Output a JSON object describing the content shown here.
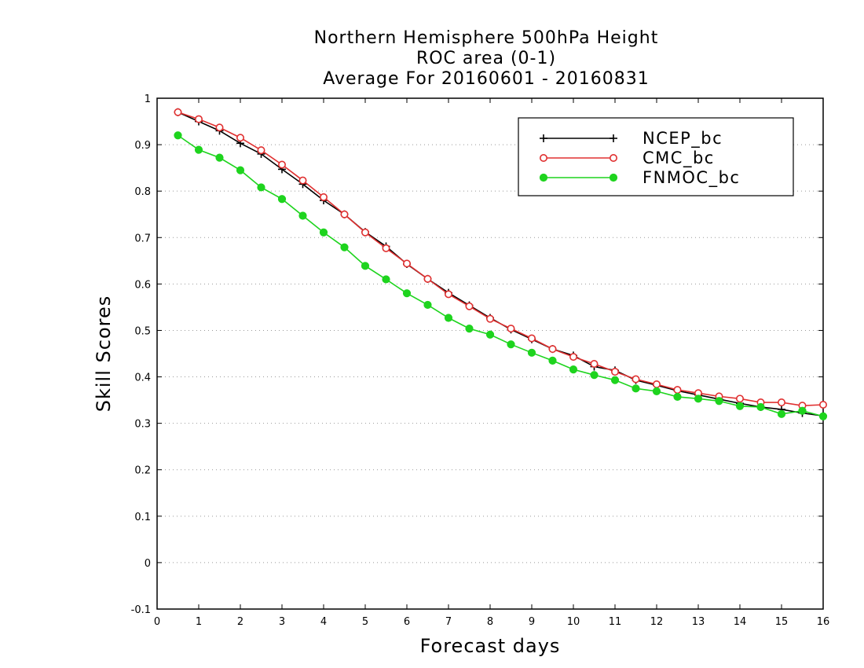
{
  "chart_data": {
    "type": "line",
    "title_lines": [
      "Northern Hemisphere 500hPa Height",
      "ROC area (0-1)",
      "Average For 20160601 - 20160831"
    ],
    "xlabel": "Forecast days",
    "ylabel": "Skill Scores",
    "xlim": [
      0,
      16
    ],
    "ylim": [
      -0.1,
      1
    ],
    "xticks": [
      0,
      1,
      2,
      3,
      4,
      5,
      6,
      7,
      8,
      9,
      10,
      11,
      12,
      13,
      14,
      15,
      16
    ],
    "yticks": [
      -0.1,
      0,
      0.1,
      0.2,
      0.3,
      0.4,
      0.5,
      0.6,
      0.7,
      0.8,
      0.9,
      1
    ],
    "ytick_labels": [
      "-0.1",
      "0",
      "0.1",
      "0.2",
      "0.3",
      "0.4",
      "0.5",
      "0.6",
      "0.7",
      "0.8",
      "0.9",
      "1"
    ],
    "grid": "horizontal dotted",
    "legend_position": "top-right",
    "x": [
      0.5,
      1,
      1.5,
      2,
      2.5,
      3,
      3.5,
      4,
      4.5,
      5,
      5.5,
      6,
      6.5,
      7,
      7.5,
      8,
      8.5,
      9,
      9.5,
      10,
      10.5,
      11,
      11.5,
      12,
      12.5,
      13,
      13.5,
      14,
      14.5,
      15,
      15.5,
      16
    ],
    "series": [
      {
        "name": "NCEP_bc",
        "color": "#000000",
        "marker": "plus",
        "values": [
          0.97,
          0.95,
          0.93,
          0.903,
          0.88,
          0.847,
          0.815,
          0.78,
          0.75,
          0.712,
          0.681,
          0.643,
          0.611,
          0.581,
          0.554,
          0.527,
          0.502,
          0.481,
          0.46,
          0.446,
          0.422,
          0.414,
          0.393,
          0.382,
          0.37,
          0.361,
          0.352,
          0.343,
          0.335,
          0.33,
          0.322,
          0.316
        ]
      },
      {
        "name": "CMC_bc",
        "color": "#e03030",
        "marker": "open-circle",
        "values": [
          0.97,
          0.955,
          0.937,
          0.915,
          0.888,
          0.857,
          0.823,
          0.787,
          0.75,
          0.711,
          0.677,
          0.644,
          0.611,
          0.578,
          0.552,
          0.525,
          0.504,
          0.483,
          0.46,
          0.443,
          0.428,
          0.411,
          0.395,
          0.384,
          0.372,
          0.365,
          0.358,
          0.353,
          0.345,
          0.345,
          0.338,
          0.34
        ]
      },
      {
        "name": "FNMOC_bc",
        "color": "#1ed41e",
        "marker": "filled-circle",
        "values": [
          0.92,
          0.889,
          0.872,
          0.845,
          0.808,
          0.783,
          0.747,
          0.711,
          0.679,
          0.639,
          0.61,
          0.58,
          0.555,
          0.527,
          0.504,
          0.491,
          0.47,
          0.452,
          0.435,
          0.416,
          0.404,
          0.393,
          0.375,
          0.369,
          0.357,
          0.353,
          0.348,
          0.337,
          0.335,
          0.32,
          0.327,
          0.315
        ]
      }
    ]
  }
}
